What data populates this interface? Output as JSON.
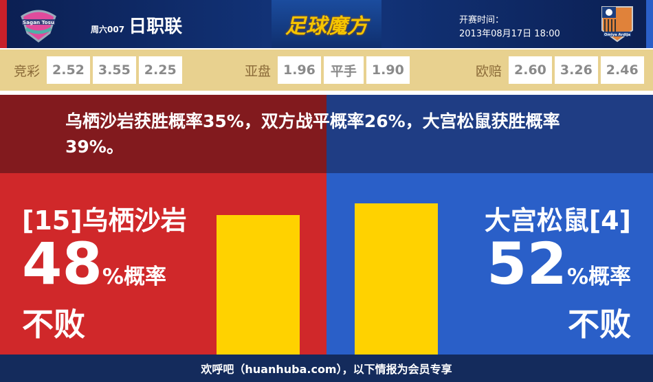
{
  "header": {
    "home_logo_text": "Sagan Tosu",
    "away_logo_text": "Omiya Ardija",
    "match_no": "周六007",
    "league": "日职联",
    "brand": "足球魔方",
    "time_label": "开赛时间：",
    "time_value": "2013年08月17日 18:00"
  },
  "odds": {
    "jingcai": {
      "label": "竞彩",
      "values": [
        "2.52",
        "3.55",
        "2.25"
      ]
    },
    "yapan": {
      "label": "亚盘",
      "values": [
        "1.96",
        "平手",
        "1.90"
      ]
    },
    "oupei": {
      "label": "欧赔",
      "values": [
        "2.60",
        "3.26",
        "2.46"
      ]
    }
  },
  "summary": "乌栖沙岩获胜概率35%，双方战平概率26%，大宫松鼠获胜概率39%。",
  "home": {
    "team": "[15]乌栖沙岩",
    "percent": "48",
    "unit": "%概率",
    "outcome": "不败",
    "value": 48
  },
  "away": {
    "team": "大宫松鼠[4]",
    "percent": "52",
    "unit": "%概率",
    "outcome": "不败",
    "value": 52
  },
  "colors": {
    "home": "#d0282a",
    "away": "#2a5fc8",
    "bar": "#ffd200",
    "odds_bg": "#e8d18f"
  },
  "footer": "欢呼吧（huanhuba.com），以下情报为会员专享"
}
